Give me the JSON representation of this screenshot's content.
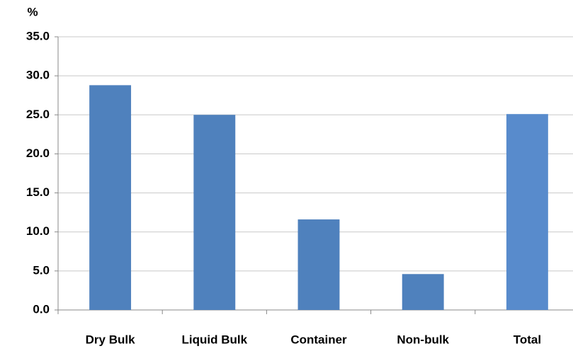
{
  "chart_data": {
    "type": "bar",
    "y_label": "%",
    "categories": [
      "Dry Bulk",
      "Liquid Bulk",
      "Container",
      "Non-bulk",
      "Total"
    ],
    "values": [
      28.8,
      25.0,
      11.6,
      4.6,
      25.1
    ],
    "colors": [
      "#4f81bd",
      "#4f81bd",
      "#4f81bd",
      "#4f81bd",
      "#588bcc"
    ],
    "ylim": [
      0,
      35
    ],
    "yticks": [
      {
        "value": 0,
        "label": "0.0"
      },
      {
        "value": 5,
        "label": "5.0"
      },
      {
        "value": 10,
        "label": "10.0"
      },
      {
        "value": 15,
        "label": "15.0"
      },
      {
        "value": 20,
        "label": "20.0"
      },
      {
        "value": 25,
        "label": "25.0"
      },
      {
        "value": 30,
        "label": "30.0"
      },
      {
        "value": 35,
        "label": "35.0"
      }
    ],
    "grid": true
  }
}
